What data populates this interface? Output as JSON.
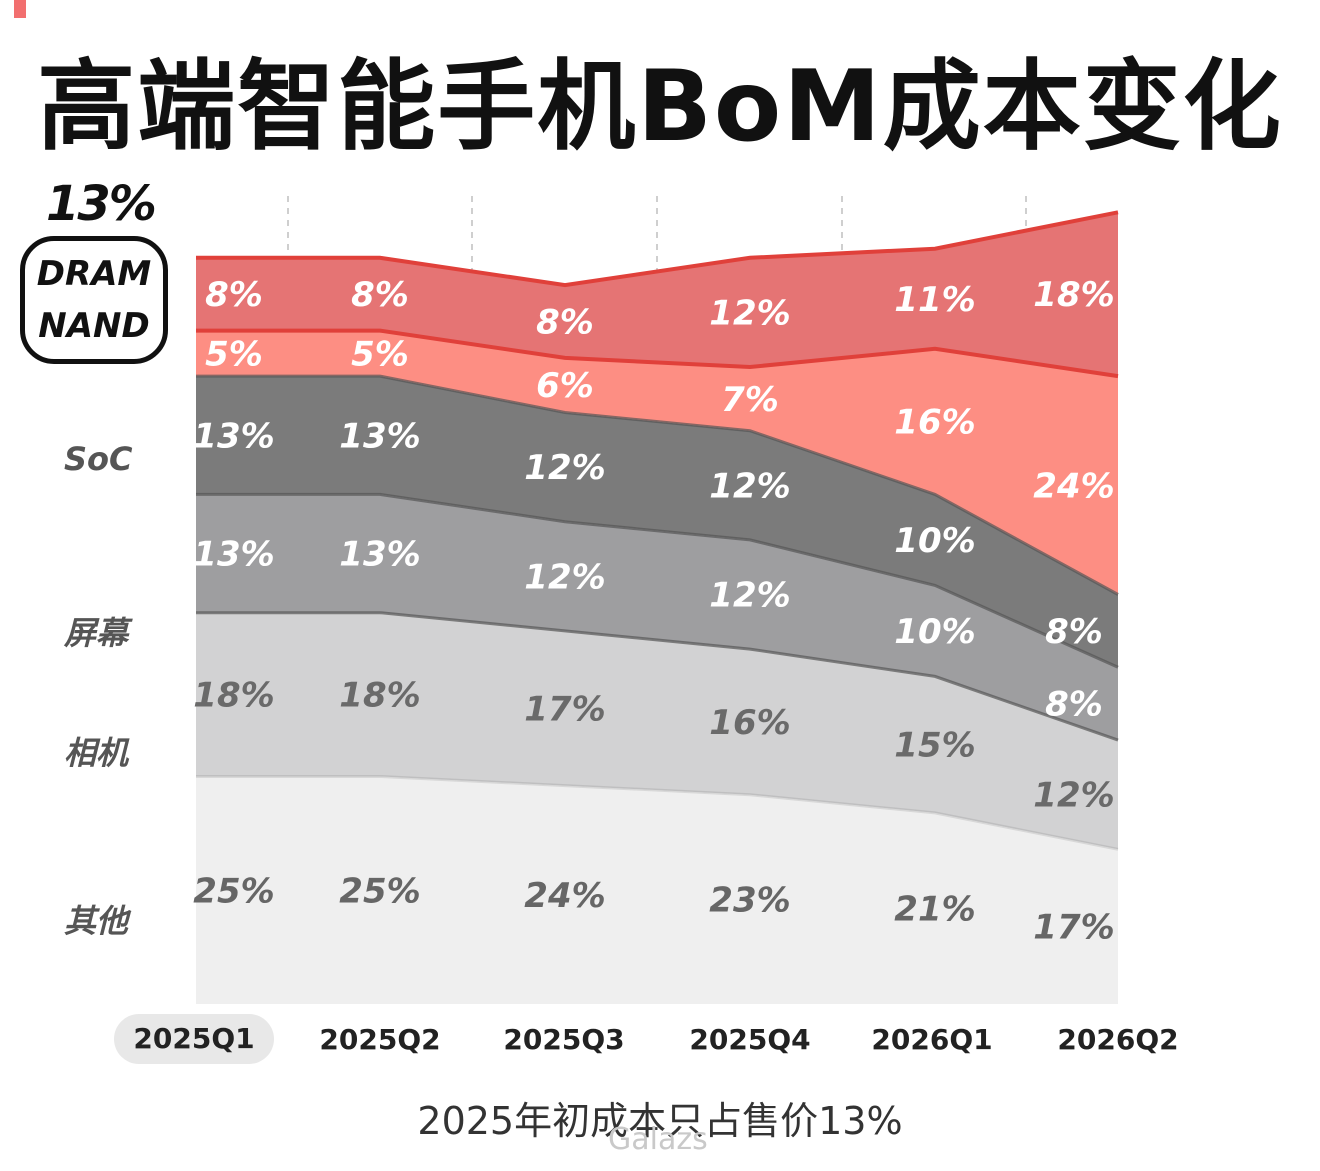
{
  "title": "高端智能手机BoM成本变化",
  "callout": {
    "percent": "13%",
    "line1": "DRAM",
    "line2": "NAND"
  },
  "caption": "2025年初成本只占售价13%",
  "watermark": "Galazs",
  "colors": {
    "dram": "#e57474",
    "dram_line": "#e0403a",
    "nand": "#fd8e83",
    "nand_line": "#e0403a",
    "soc": "#7b7b7b",
    "screen": "#9e9ea0",
    "camera": "#d2d2d3",
    "other": "#efefef",
    "grey_line": "#555555"
  },
  "chart_data": {
    "type": "area",
    "stacked": true,
    "categories": [
      "2025Q1",
      "2025Q2",
      "2025Q3",
      "2025Q4",
      "2026Q1",
      "2026Q2"
    ],
    "series": [
      {
        "name": "其他",
        "key": "other",
        "values": [
          25,
          25,
          24,
          23,
          21,
          17
        ]
      },
      {
        "name": "相机",
        "key": "camera",
        "values": [
          18,
          18,
          17,
          16,
          15,
          12
        ]
      },
      {
        "name": "屏幕",
        "key": "screen",
        "values": [
          13,
          13,
          12,
          12,
          10,
          8
        ]
      },
      {
        "name": "SoC",
        "key": "soc",
        "values": [
          13,
          13,
          12,
          12,
          10,
          8
        ]
      },
      {
        "name": "NAND",
        "key": "nand",
        "values": [
          5,
          5,
          6,
          7,
          16,
          24
        ]
      },
      {
        "name": "DRAM",
        "key": "dram",
        "values": [
          8,
          8,
          8,
          12,
          11,
          18
        ]
      }
    ],
    "data_labels": [
      [
        "25%",
        "25%",
        "24%",
        "23%",
        "21%",
        "17%"
      ],
      [
        "18%",
        "18%",
        "17%",
        "16%",
        "15%",
        "12%"
      ],
      [
        "13%",
        "13%",
        "12%",
        "12%",
        "10%",
        "8%"
      ],
      [
        "13%",
        "13%",
        "12%",
        "12%",
        "10%",
        "8%"
      ],
      [
        "5%",
        "5%",
        "6%",
        "7%",
        "16%",
        "24%"
      ],
      [
        "8%",
        "8%",
        "8%",
        "12%",
        "11%",
        "18%"
      ]
    ],
    "category_labels": [
      "其他",
      "相机",
      "屏幕",
      "SoC"
    ],
    "highlight_category": "2025Q1",
    "grid": true
  }
}
